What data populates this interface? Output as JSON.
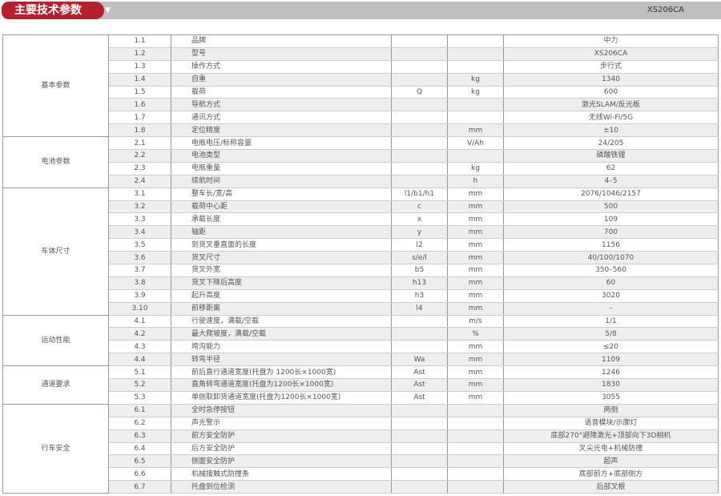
{
  "header": {
    "title": "主要技术参数",
    "dropdown_icon": "triangle-down-icon",
    "model": "XS206CA"
  },
  "colors": {
    "accent": "#b5202a",
    "bar": "#bfbfbf"
  },
  "groups": [
    {
      "label": "基本参数",
      "rows": [
        [
          "1.1",
          "品牌",
          "",
          "",
          "中力"
        ],
        [
          "1.2",
          "型号",
          "",
          "",
          "XS206CA"
        ],
        [
          "1.3",
          "操作方式",
          "",
          "",
          "步行式"
        ],
        [
          "1.4",
          "自重",
          "",
          "kg",
          "1340"
        ],
        [
          "1.5",
          "载荷",
          "Q",
          "kg",
          "600"
        ],
        [
          "1.6",
          "导航方式",
          "",
          "",
          "激光SLAM/反光板"
        ],
        [
          "1.7",
          "通讯方式",
          "",
          "",
          "无线Wi-Fi/5G"
        ],
        [
          "1.8",
          "定位精度",
          "",
          "mm",
          "±10"
        ]
      ]
    },
    {
      "label": "电池参数",
      "rows": [
        [
          "2.1",
          "电瓶电压/标称容量",
          "",
          "V/Ah",
          "24/205"
        ],
        [
          "2.2",
          "电池类型",
          "",
          "",
          "磷酸铁锂"
        ],
        [
          "2.3",
          "电瓶重量",
          "",
          "kg",
          "62"
        ],
        [
          "2.4",
          "续航时间",
          "",
          "h",
          "4–5"
        ]
      ]
    },
    {
      "label": "车体尺寸",
      "rows": [
        [
          "3.1",
          "整车长/宽/高",
          "l1/b1/h1",
          "mm",
          "2076/1046/2157"
        ],
        [
          "3.2",
          "载荷中心距",
          "c",
          "mm",
          "500"
        ],
        [
          "3.3",
          "承载长度",
          "x",
          "mm",
          "109"
        ],
        [
          "3.4",
          "轴距",
          "y",
          "mm",
          "700"
        ],
        [
          "3.5",
          "到货叉垂直面的长度",
          "l2",
          "mm",
          "1156"
        ],
        [
          "3.6",
          "货叉尺寸",
          "s/e/l",
          "mm",
          "40/100/1070"
        ],
        [
          "3.7",
          "货叉外宽",
          "b5",
          "mm",
          "350–560"
        ],
        [
          "3.8",
          "货叉下降后高度",
          "h13",
          "mm",
          "60"
        ],
        [
          "3.9",
          "起升高度",
          "h3",
          "mm",
          "3020"
        ],
        [
          "3.10",
          "前移距离",
          "l4",
          "mm",
          "–"
        ]
      ]
    },
    {
      "label": "运动性能",
      "rows": [
        [
          "4.1",
          "行驶速度，满载/空载",
          "",
          "m/s",
          "1/1"
        ],
        [
          "4.2",
          "最大爬坡度，满载/空载",
          "",
          "%",
          "5/8"
        ],
        [
          "4.3",
          "垮沟能力",
          "",
          "mm",
          "≤20"
        ],
        [
          "4.4",
          "转弯半径",
          "Wa",
          "mm",
          "1109"
        ]
      ]
    },
    {
      "label": "通道要求",
      "rows": [
        [
          "5.1",
          "前后直行通道宽度(托盘为 1200长×1000宽)",
          "Ast",
          "mm",
          "1246"
        ],
        [
          "5.2",
          "直角转弯通道宽度(托盘为1200长×1000宽)",
          "Ast",
          "mm",
          "1830"
        ],
        [
          "5.3",
          "单侧取卸货通道宽度(托盘为1200长×1000宽)",
          "Ast",
          "mm",
          "3055"
        ]
      ]
    },
    {
      "label": "行车安全",
      "rows": [
        [
          "6.1",
          "全时急停按钮",
          "",
          "",
          "两侧"
        ],
        [
          "6.2",
          "声光警示",
          "",
          "",
          "语音模块/示廓灯"
        ],
        [
          "6.3",
          "前方安全防护",
          "",
          "",
          "底部270°避障激光+顶部向下3D相机"
        ],
        [
          "6.4",
          "后方安全防护",
          "",
          "",
          "叉尖光电+机械防撞"
        ],
        [
          "6.5",
          "侧面安全防护",
          "",
          "",
          "超声"
        ],
        [
          "6.6",
          "机械接触式防撞条",
          "",
          "",
          "底部前方+底部侧方"
        ],
        [
          "6.7",
          "托盘到位检测",
          "",
          "",
          "后部叉根"
        ]
      ]
    }
  ]
}
